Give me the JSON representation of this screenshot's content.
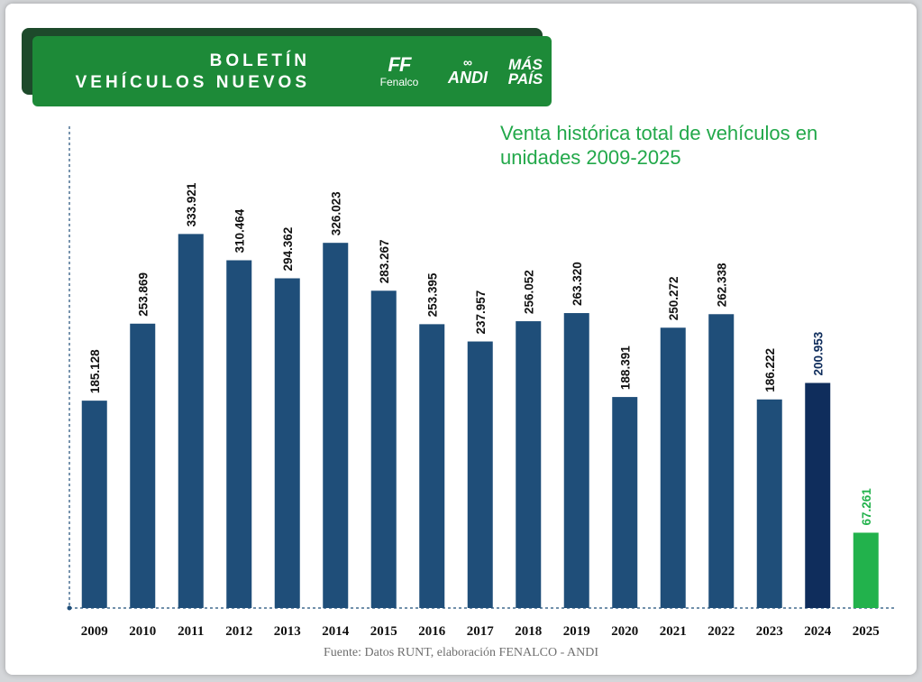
{
  "header": {
    "title_line1": "BOLETÍN",
    "title_line2": "VEHÍCULOS NUEVOS",
    "logos": [
      {
        "name": "fenalco",
        "mark": "FF",
        "word": "Fenalco"
      },
      {
        "name": "andi",
        "mark": "∞",
        "word": "ANDI"
      },
      {
        "name": "mas-pais",
        "line1": "MÁS",
        "line2": "PAÍS"
      }
    ]
  },
  "colors": {
    "bar_default": "#1f4e79",
    "bar_2024": "#0f2d5c",
    "bar_2025": "#22b24c",
    "banner": "#1d8a38",
    "title": "#22a84a"
  },
  "source_note": "Fuente: Datos RUNT, elaboración FENALCO - ANDI",
  "chart_data": {
    "type": "bar",
    "title": "Venta histórica total de vehículos en unidades 2009-2025",
    "xlabel": "",
    "ylabel": "",
    "ylim": [
      0,
      380000
    ],
    "grid": false,
    "categories": [
      "2009",
      "2010",
      "2011",
      "2012",
      "2013",
      "2014",
      "2015",
      "2016",
      "2017",
      "2018",
      "2019",
      "2020",
      "2021",
      "2022",
      "2023",
      "2024",
      "2025"
    ],
    "values": [
      185128,
      253869,
      333921,
      310464,
      294362,
      326023,
      283267,
      253395,
      237957,
      256052,
      263320,
      188391,
      250272,
      262338,
      186222,
      200953,
      67261
    ],
    "value_labels": [
      "185.128",
      "253.869",
      "333.921",
      "310.464",
      "294.362",
      "326.023",
      "283.267",
      "253.395",
      "237.957",
      "256.052",
      "263.320",
      "188.391",
      "250.272",
      "262.338",
      "186.222",
      "200.953",
      "67.261"
    ]
  }
}
